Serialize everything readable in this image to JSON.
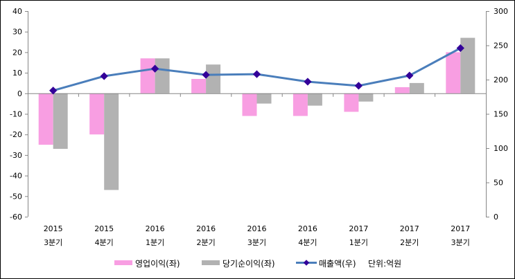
{
  "chart_data": {
    "type": "bar",
    "title": "",
    "categories": [
      {
        "year": "2015",
        "quarter": "3분기"
      },
      {
        "year": "2015",
        "quarter": "4분기"
      },
      {
        "year": "2016",
        "quarter": "1분기"
      },
      {
        "year": "2016",
        "quarter": "2분기"
      },
      {
        "year": "2016",
        "quarter": "3분기"
      },
      {
        "year": "2016",
        "quarter": "4분기"
      },
      {
        "year": "2017",
        "quarter": "1분기"
      },
      {
        "year": "2017",
        "quarter": "2분기"
      },
      {
        "year": "2017",
        "quarter": "3분기"
      }
    ],
    "series": [
      {
        "name": "영업이익(좌)",
        "type": "bar",
        "axis": "left",
        "color": "#f89ee2",
        "values": [
          -25,
          -20,
          17,
          7,
          -11,
          -11,
          -9,
          3,
          20
        ]
      },
      {
        "name": "당기순이익(좌)",
        "type": "bar",
        "axis": "left",
        "color": "#b2b2b2",
        "values": [
          -27,
          -47,
          17,
          14,
          -5,
          -6,
          -4,
          5,
          27
        ]
      },
      {
        "name": "매출액(우)",
        "type": "line",
        "axis": "right",
        "color": "#4a7ebb",
        "marker_color": "#330099",
        "values": [
          184,
          205,
          216,
          207,
          208,
          197,
          191,
          206,
          246
        ]
      }
    ],
    "left_axis": {
      "min": -60,
      "max": 40,
      "step": 10,
      "ticks": [
        "40",
        "30",
        "20",
        "10",
        "0",
        "-10",
        "-20",
        "-30",
        "-40",
        "-50",
        "-60"
      ]
    },
    "right_axis": {
      "min": 0,
      "max": 300,
      "step": 50,
      "ticks": [
        "300",
        "250",
        "200",
        "150",
        "100",
        "50",
        "0"
      ]
    },
    "legend": {
      "position": "bottom",
      "unit_note": "단위:억원"
    },
    "grid": false
  }
}
